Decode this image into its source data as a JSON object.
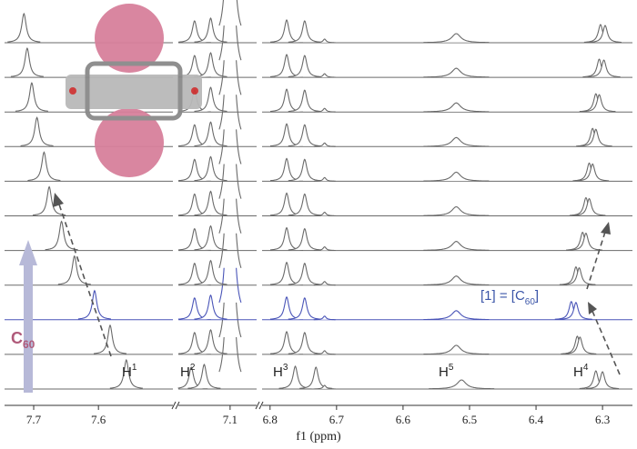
{
  "chart_data": {
    "type": "nmr-stack",
    "xlabel": "f1 (ppm)",
    "segments": [
      {
        "xlim": [
          7.745,
          7.485
        ],
        "xticks": [
          7.7,
          7.6
        ]
      },
      {
        "xlim": [
          7.18,
          7.059
        ],
        "xticks": [
          7.1
        ]
      },
      {
        "xlim": [
          6.812,
          6.255
        ],
        "xticks": [
          6.8,
          6.7,
          6.6,
          6.5,
          6.4,
          6.3
        ]
      }
    ],
    "traces": [
      {
        "color": "#6a6a6a",
        "peaks": [
          7.557,
          7.16,
          7.14,
          7.1,
          6.762,
          6.731,
          6.718,
          6.512,
          6.31,
          6.3
        ]
      },
      {
        "color": "#6a6a6a",
        "peaks": [
          7.582,
          7.155,
          7.13,
          7.1,
          6.775,
          6.748,
          6.718,
          6.52,
          6.338,
          6.334
        ]
      },
      {
        "color": "#4a55b8",
        "peaks": [
          7.606,
          7.155,
          7.13,
          7.1,
          6.775,
          6.748,
          6.718,
          6.52,
          6.347,
          6.34
        ]
      },
      {
        "color": "#6a6a6a",
        "peaks": [
          7.637,
          7.155,
          7.13,
          7.1,
          6.775,
          6.748,
          6.718,
          6.52,
          6.34,
          6.335
        ]
      },
      {
        "color": "#6a6a6a",
        "peaks": [
          7.657,
          7.155,
          7.13,
          7.1,
          6.775,
          6.748,
          6.718,
          6.52,
          6.33,
          6.325
        ]
      },
      {
        "color": "#6a6a6a",
        "peaks": [
          7.676,
          7.155,
          7.13,
          7.1,
          6.775,
          6.748,
          6.718,
          6.52,
          6.325,
          6.32
        ]
      },
      {
        "color": "#6a6a6a",
        "peaks": [
          7.684,
          7.155,
          7.13,
          7.1,
          6.775,
          6.748,
          6.718,
          6.52,
          6.32,
          6.315
        ]
      },
      {
        "color": "#6a6a6a",
        "peaks": [
          7.695,
          7.155,
          7.13,
          7.1,
          6.775,
          6.748,
          6.718,
          6.52,
          6.315,
          6.31
        ]
      },
      {
        "color": "#6a6a6a",
        "peaks": [
          7.703,
          7.155,
          7.13,
          7.1,
          6.775,
          6.748,
          6.718,
          6.52,
          6.31,
          6.305
        ]
      },
      {
        "color": "#6a6a6a",
        "peaks": [
          7.71,
          7.155,
          7.13,
          7.1,
          6.775,
          6.748,
          6.718,
          6.52,
          6.305,
          6.298
        ]
      },
      {
        "color": "#6a6a6a",
        "peaks": [
          7.715,
          7.155,
          7.13,
          7.1,
          6.775,
          6.748,
          6.718,
          6.52,
          6.303,
          6.296
        ]
      }
    ],
    "annotations": {
      "h1": {
        "text": "H",
        "sup": "1"
      },
      "h2": {
        "text": "H",
        "sup": "2"
      },
      "h3": {
        "text": "H",
        "sup": "3"
      },
      "h5": {
        "text": "H",
        "sup": "5"
      },
      "h4": {
        "text": "H",
        "sup": "4"
      },
      "ratio": {
        "text": "[1] = [C",
        "sub": "60",
        "end": "]",
        "color": "#3b55a8"
      },
      "guest": {
        "text": "C",
        "sub": "60",
        "color": "#b05a7a"
      }
    }
  }
}
